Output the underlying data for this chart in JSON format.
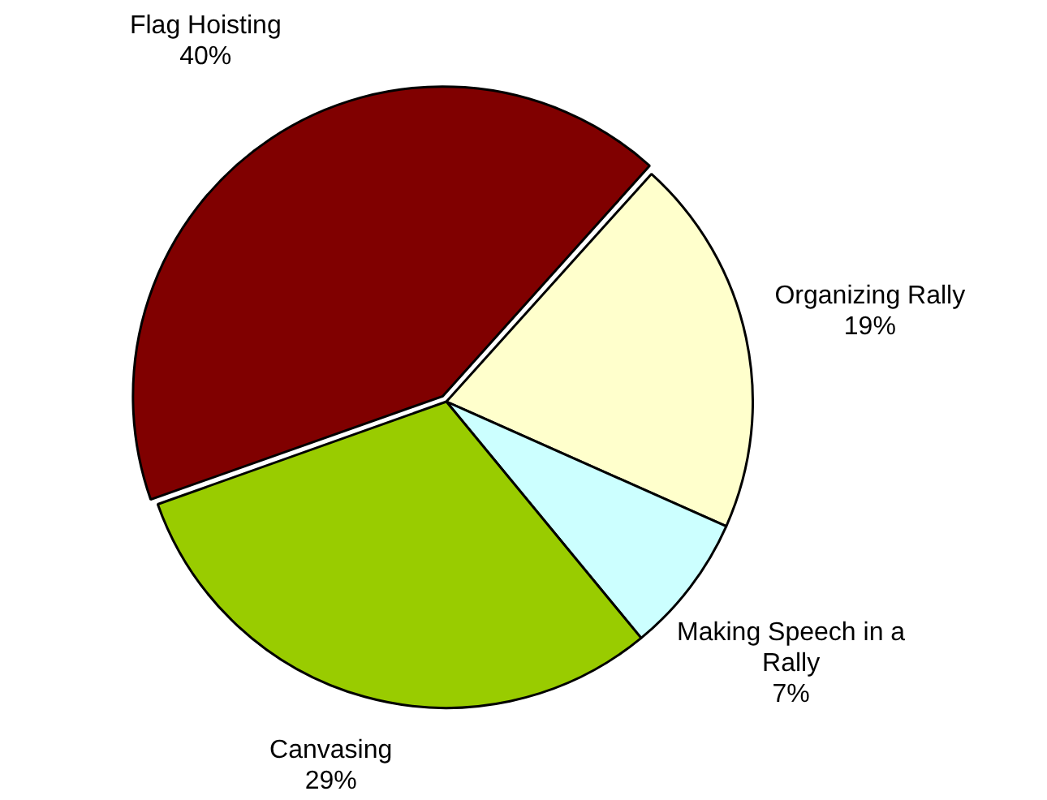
{
  "chart_data": {
    "type": "pie",
    "categories": [
      "Organizing Rally",
      "Making Speech in a Rally",
      "Canvasing",
      "Flag Hoisting"
    ],
    "values": [
      19,
      7,
      29,
      40
    ],
    "colors": [
      "#ffffcc",
      "#ccffff",
      "#99cc00",
      "#800000"
    ],
    "value_labels": [
      "19%",
      "7%",
      "29%",
      "40%"
    ],
    "legend": false
  }
}
